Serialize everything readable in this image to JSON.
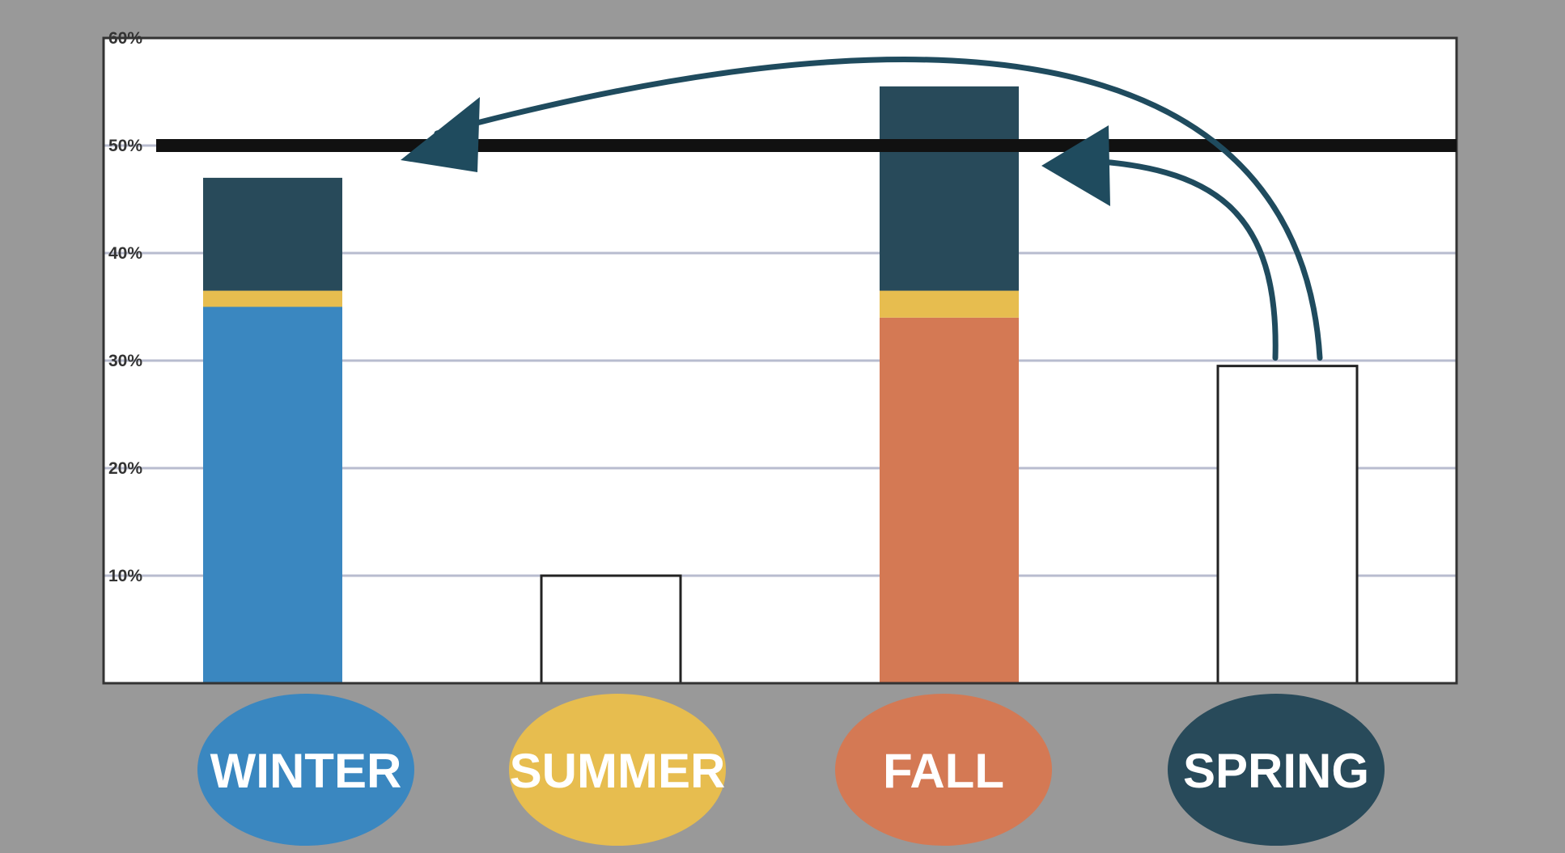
{
  "chart_data": {
    "type": "bar",
    "categories": [
      "WINTER",
      "SUMMER",
      "FALL",
      "SPRING"
    ],
    "ylim": [
      0,
      60
    ],
    "y_ticks": [
      "10%",
      "20%",
      "30%",
      "40%",
      "50%",
      "60%"
    ],
    "grid": true,
    "reference_line": 50,
    "bars": [
      {
        "category": "WINTER",
        "segments": [
          {
            "color": "winter",
            "value": 35
          },
          {
            "color": "summer",
            "value": 1.5
          },
          {
            "color": "spring",
            "value": 10.5
          }
        ]
      },
      {
        "category": "SUMMER",
        "segments": [
          {
            "color": "outline",
            "value": 10
          }
        ]
      },
      {
        "category": "FALL",
        "segments": [
          {
            "color": "fall",
            "value": 34
          },
          {
            "color": "summer",
            "value": 2.5
          },
          {
            "color": "spring",
            "value": 19
          }
        ]
      },
      {
        "category": "SPRING",
        "segments": [
          {
            "color": "outline",
            "value": 29.5
          }
        ]
      }
    ],
    "arrows": [
      {
        "from": "SPRING",
        "to": "WINTER"
      },
      {
        "from": "SPRING",
        "to": "FALL"
      }
    ]
  },
  "colors": {
    "background": "#999999",
    "plot": "#ffffff",
    "grid": "#b8bccf",
    "axis": "#333333",
    "reference_line": "#111111",
    "winter": "#3a87c0",
    "summer": "#e7bd4f",
    "fall": "#d47954",
    "spring": "#284a5a",
    "arrow": "#1f4b5e",
    "outline": "#ffffff"
  },
  "labels": {
    "winter": "WINTER",
    "summer": "SUMMER",
    "fall": "FALL",
    "spring": "SPRING"
  }
}
